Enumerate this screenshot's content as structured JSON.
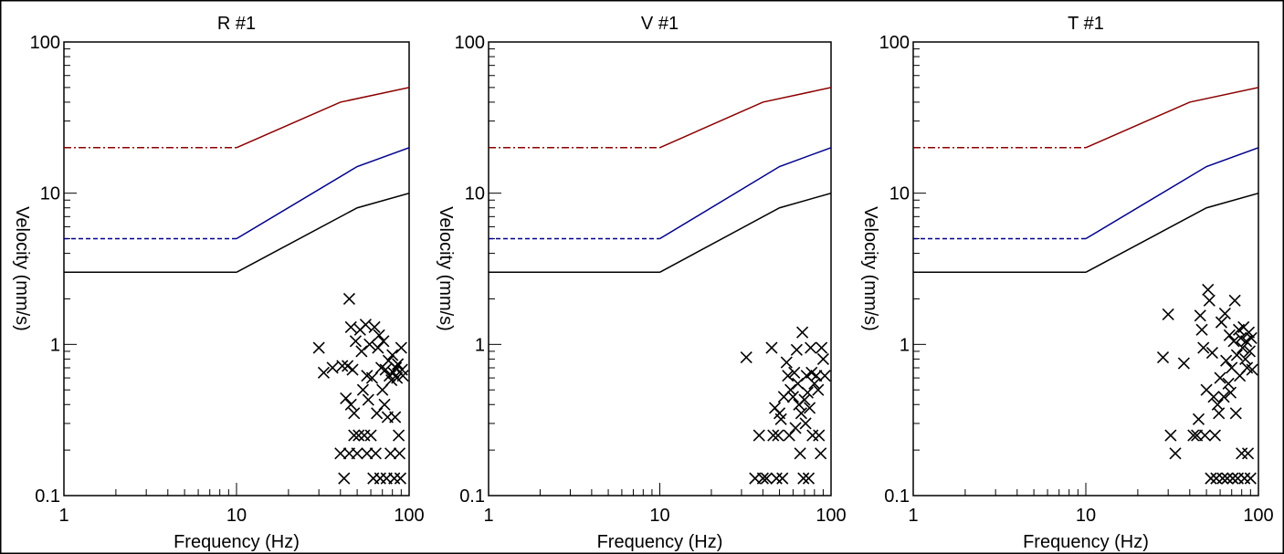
{
  "chart_data": [
    {
      "type": "scatter",
      "title": "R #1",
      "xlabel": "Frequency (Hz)",
      "ylabel": "Velocity (mm/s)",
      "x_scale": "log",
      "y_scale": "log",
      "xlim": [
        1,
        100
      ],
      "ylim": [
        0.1,
        100
      ],
      "x_ticks": [
        "1",
        "10",
        "100"
      ],
      "y_ticks": [
        "0.1",
        "1",
        "10",
        "100"
      ],
      "grid": false,
      "marker": "x",
      "points": [
        [
          30,
          0.95
        ],
        [
          32,
          0.65
        ],
        [
          36,
          0.7
        ],
        [
          40,
          0.19
        ],
        [
          41,
          0.72
        ],
        [
          42,
          0.13
        ],
        [
          43,
          0.44
        ],
        [
          44,
          0.72
        ],
        [
          45,
          0.19
        ],
        [
          45,
          2.0
        ],
        [
          46,
          0.4
        ],
        [
          46,
          1.3
        ],
        [
          47,
          0.68
        ],
        [
          48,
          0.25
        ],
        [
          48,
          0.35
        ],
        [
          49,
          1.05
        ],
        [
          50,
          0.19
        ],
        [
          51,
          0.25
        ],
        [
          52,
          1.25
        ],
        [
          53,
          0.9
        ],
        [
          54,
          0.5
        ],
        [
          55,
          0.25
        ],
        [
          56,
          1.35
        ],
        [
          57,
          0.19
        ],
        [
          57,
          0.62
        ],
        [
          58,
          0.43
        ],
        [
          59,
          1.0
        ],
        [
          60,
          0.25
        ],
        [
          61,
          0.6
        ],
        [
          62,
          0.13
        ],
        [
          63,
          1.3
        ],
        [
          64,
          0.19
        ],
        [
          65,
          0.35
        ],
        [
          66,
          0.95
        ],
        [
          67,
          1.15
        ],
        [
          68,
          0.13
        ],
        [
          69,
          0.7
        ],
        [
          70,
          0.5
        ],
        [
          71,
          1.05
        ],
        [
          72,
          0.4
        ],
        [
          73,
          0.68
        ],
        [
          74,
          0.13
        ],
        [
          75,
          0.33
        ],
        [
          76,
          0.78
        ],
        [
          77,
          0.62
        ],
        [
          78,
          0.19
        ],
        [
          79,
          0.58
        ],
        [
          80,
          0.85
        ],
        [
          81,
          0.65
        ],
        [
          82,
          0.13
        ],
        [
          83,
          0.33
        ],
        [
          84,
          0.7
        ],
        [
          85,
          0.6
        ],
        [
          86,
          0.74
        ],
        [
          87,
          0.25
        ],
        [
          88,
          0.19
        ],
        [
          89,
          0.13
        ],
        [
          90,
          0.95
        ],
        [
          91,
          0.68
        ],
        [
          92,
          0.62
        ]
      ],
      "series": [
        {
          "color": "#8b0000",
          "style": "dashdot",
          "points": [
            [
              1,
              20
            ],
            [
              10,
              20
            ],
            [
              40,
              40
            ],
            [
              100,
              50
            ]
          ]
        },
        {
          "color": "#00008b",
          "style": "dash",
          "points": [
            [
              1,
              5
            ],
            [
              10,
              5
            ],
            [
              50,
              15
            ],
            [
              100,
              20
            ]
          ]
        },
        {
          "color": "#000000",
          "style": "solid",
          "points": [
            [
              1,
              3
            ],
            [
              10,
              3
            ],
            [
              50,
              8
            ],
            [
              100,
              10
            ]
          ]
        }
      ]
    },
    {
      "type": "scatter",
      "title": "V #1",
      "xlabel": "Frequency (Hz)",
      "ylabel": "Velocity (mm/s)",
      "x_scale": "log",
      "y_scale": "log",
      "xlim": [
        1,
        100
      ],
      "ylim": [
        0.1,
        100
      ],
      "x_ticks": [
        "1",
        "10",
        "100"
      ],
      "y_ticks": [
        "0.1",
        "1",
        "10",
        "100"
      ],
      "grid": false,
      "marker": "x",
      "points": [
        [
          32,
          0.82
        ],
        [
          36,
          0.13
        ],
        [
          38,
          0.25
        ],
        [
          40,
          0.13
        ],
        [
          42,
          0.13
        ],
        [
          45,
          0.95
        ],
        [
          46,
          0.25
        ],
        [
          47,
          0.38
        ],
        [
          48,
          0.13
        ],
        [
          49,
          0.25
        ],
        [
          50,
          0.35
        ],
        [
          51,
          0.32
        ],
        [
          52,
          0.13
        ],
        [
          53,
          0.45
        ],
        [
          55,
          0.76
        ],
        [
          56,
          0.62
        ],
        [
          57,
          0.25
        ],
        [
          58,
          0.5
        ],
        [
          60,
          0.45
        ],
        [
          61,
          0.65
        ],
        [
          62,
          0.28
        ],
        [
          63,
          0.92
        ],
        [
          64,
          0.55
        ],
        [
          65,
          0.4
        ],
        [
          66,
          0.19
        ],
        [
          67,
          0.35
        ],
        [
          68,
          1.2
        ],
        [
          69,
          0.13
        ],
        [
          70,
          0.43
        ],
        [
          71,
          0.3
        ],
        [
          72,
          0.62
        ],
        [
          73,
          0.48
        ],
        [
          74,
          0.13
        ],
        [
          75,
          0.38
        ],
        [
          76,
          0.95
        ],
        [
          77,
          0.65
        ],
        [
          78,
          0.25
        ],
        [
          80,
          0.55
        ],
        [
          82,
          0.62
        ],
        [
          84,
          0.5
        ],
        [
          85,
          0.25
        ],
        [
          87,
          0.19
        ],
        [
          88,
          0.95
        ],
        [
          90,
          0.8
        ],
        [
          92,
          0.62
        ]
      ],
      "series": [
        {
          "color": "#8b0000",
          "style": "dashdot",
          "points": [
            [
              1,
              20
            ],
            [
              10,
              20
            ],
            [
              40,
              40
            ],
            [
              100,
              50
            ]
          ]
        },
        {
          "color": "#00008b",
          "style": "dash",
          "points": [
            [
              1,
              5
            ],
            [
              10,
              5
            ],
            [
              50,
              15
            ],
            [
              100,
              20
            ]
          ]
        },
        {
          "color": "#000000",
          "style": "solid",
          "points": [
            [
              1,
              3
            ],
            [
              10,
              3
            ],
            [
              50,
              8
            ],
            [
              100,
              10
            ]
          ]
        }
      ]
    },
    {
      "type": "scatter",
      "title": "T #1",
      "xlabel": "Frequency (Hz)",
      "ylabel": "Velocity (mm/s)",
      "x_scale": "log",
      "y_scale": "log",
      "xlim": [
        1,
        100
      ],
      "ylim": [
        0.1,
        100
      ],
      "x_ticks": [
        "1",
        "10",
        "100"
      ],
      "y_ticks": [
        "0.1",
        "1",
        "10",
        "100"
      ],
      "grid": false,
      "marker": "x",
      "points": [
        [
          28,
          0.82
        ],
        [
          30,
          1.58
        ],
        [
          31,
          0.25
        ],
        [
          33,
          0.19
        ],
        [
          37,
          0.75
        ],
        [
          42,
          0.25
        ],
        [
          44,
          0.25
        ],
        [
          45,
          0.32
        ],
        [
          46,
          1.55
        ],
        [
          47,
          1.25
        ],
        [
          48,
          0.95
        ],
        [
          49,
          0.25
        ],
        [
          50,
          0.5
        ],
        [
          51,
          2.3
        ],
        [
          52,
          1.95
        ],
        [
          53,
          0.13
        ],
        [
          54,
          0.88
        ],
        [
          55,
          0.45
        ],
        [
          56,
          0.25
        ],
        [
          57,
          0.13
        ],
        [
          58,
          0.4
        ],
        [
          59,
          0.35
        ],
        [
          60,
          0.6
        ],
        [
          61,
          1.4
        ],
        [
          62,
          0.13
        ],
        [
          63,
          0.45
        ],
        [
          64,
          1.6
        ],
        [
          65,
          0.78
        ],
        [
          66,
          0.13
        ],
        [
          67,
          0.55
        ],
        [
          68,
          1.15
        ],
        [
          69,
          0.48
        ],
        [
          70,
          0.7
        ],
        [
          71,
          0.13
        ],
        [
          72,
          1.05
        ],
        [
          73,
          1.95
        ],
        [
          74,
          0.35
        ],
        [
          75,
          0.85
        ],
        [
          76,
          0.13
        ],
        [
          77,
          1.25
        ],
        [
          78,
          0.62
        ],
        [
          79,
          1.1
        ],
        [
          80,
          0.19
        ],
        [
          81,
          0.95
        ],
        [
          82,
          1.3
        ],
        [
          83,
          0.13
        ],
        [
          84,
          0.8
        ],
        [
          85,
          1.05
        ],
        [
          86,
          0.7
        ],
        [
          87,
          0.19
        ],
        [
          88,
          1.2
        ],
        [
          89,
          0.9
        ],
        [
          90,
          0.13
        ],
        [
          91,
          1.1
        ],
        [
          92,
          0.68
        ]
      ],
      "series": [
        {
          "color": "#8b0000",
          "style": "dashdot",
          "points": [
            [
              1,
              20
            ],
            [
              10,
              20
            ],
            [
              40,
              40
            ],
            [
              100,
              50
            ]
          ]
        },
        {
          "color": "#00008b",
          "style": "dash",
          "points": [
            [
              1,
              5
            ],
            [
              10,
              5
            ],
            [
              50,
              15
            ],
            [
              100,
              20
            ]
          ]
        },
        {
          "color": "#000000",
          "style": "solid",
          "points": [
            [
              1,
              3
            ],
            [
              10,
              3
            ],
            [
              50,
              8
            ],
            [
              100,
              10
            ]
          ]
        }
      ]
    }
  ]
}
